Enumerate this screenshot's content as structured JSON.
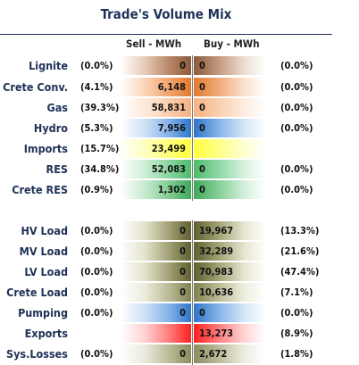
{
  "title": "Trade's Volume Mix",
  "headers": {
    "sell": "Sell - MWh",
    "buy": "Buy - MWh"
  },
  "colors": {
    "lignite": "#8b5a3c",
    "crete_conv": "#e07a2f",
    "gas": "#f5b183",
    "hydro": "#2e75c8",
    "imports": "#ffff3c",
    "res": "#4cbb6a",
    "crete_res": "#3fa85a",
    "loads": "#6b6b3a",
    "pumping": "#2e75c8",
    "exports": "#ff1e1e",
    "sys_losses": "#8c8c60"
  },
  "rows": [
    {
      "label": "Lignite",
      "sell_pct": "(0.0%)",
      "sell": "0",
      "buy": "0",
      "buy_pct": "(0.0%)"
    },
    {
      "label": "Crete Conv.",
      "sell_pct": "(4.1%)",
      "sell": "6,148",
      "buy": "0",
      "buy_pct": "(0.0%)"
    },
    {
      "label": "Gas",
      "sell_pct": "(39.3%)",
      "sell": "58,831",
      "buy": "0",
      "buy_pct": "(0.0%)"
    },
    {
      "label": "Hydro",
      "sell_pct": "(5.3%)",
      "sell": "7,956",
      "buy": "0",
      "buy_pct": "(0.0%)"
    },
    {
      "label": "Imports",
      "sell_pct": "(15.7%)",
      "sell": "23,499",
      "buy": "",
      "buy_pct": ""
    },
    {
      "label": "RES",
      "sell_pct": "(34.8%)",
      "sell": "52,083",
      "buy": "0",
      "buy_pct": "(0.0%)"
    },
    {
      "label": "Crete RES",
      "sell_pct": "(0.9%)",
      "sell": "1,302",
      "buy": "0",
      "buy_pct": "(0.0%)"
    },
    {
      "label": "HV Load",
      "sell_pct": "(0.0%)",
      "sell": "0",
      "buy": "19,967",
      "buy_pct": "(13.3%)"
    },
    {
      "label": "MV Load",
      "sell_pct": "(0.0%)",
      "sell": "0",
      "buy": "32,289",
      "buy_pct": "(21.6%)"
    },
    {
      "label": "LV Load",
      "sell_pct": "(0.0%)",
      "sell": "0",
      "buy": "70,983",
      "buy_pct": "(47.4%)"
    },
    {
      "label": "Crete Load",
      "sell_pct": "(0.0%)",
      "sell": "0",
      "buy": "10,636",
      "buy_pct": "(7.1%)"
    },
    {
      "label": "Pumping",
      "sell_pct": "(0.0%)",
      "sell": "0",
      "buy": "0",
      "buy_pct": "(0.0%)"
    },
    {
      "label": "Exports",
      "sell_pct": "",
      "sell": "",
      "buy": "13,273",
      "buy_pct": "(8.9%)"
    },
    {
      "label": "Sys.Losses",
      "sell_pct": "(0.0%)",
      "sell": "0",
      "buy": "2,672",
      "buy_pct": "(1.8%)"
    }
  ]
}
